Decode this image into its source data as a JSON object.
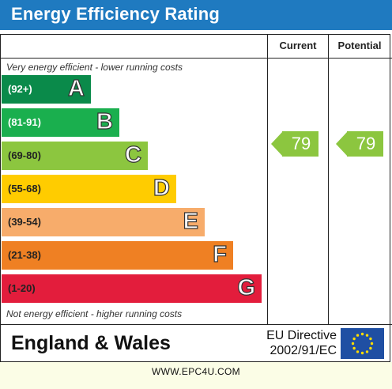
{
  "header": {
    "title": "Energy Efficiency Rating"
  },
  "columns": {
    "current": "Current",
    "potential": "Potential"
  },
  "notes": {
    "top": "Very energy efficient - lower running costs",
    "bottom": "Not energy efficient - higher running costs"
  },
  "chart_data": {
    "type": "bar",
    "title": "Energy Efficiency Rating",
    "bands": [
      {
        "letter": "A",
        "range": "(92+)",
        "color": "#0a8a4a",
        "text_color": "#ffffff"
      },
      {
        "letter": "B",
        "range": "(81-91)",
        "color": "#1aaf4e",
        "text_color": "#ffffff"
      },
      {
        "letter": "C",
        "range": "(69-80)",
        "color": "#8cc63f",
        "text_color": "#222222"
      },
      {
        "letter": "D",
        "range": "(55-68)",
        "color": "#ffcc00",
        "text_color": "#222222"
      },
      {
        "letter": "E",
        "range": "(39-54)",
        "color": "#f7ac6b",
        "text_color": "#222222"
      },
      {
        "letter": "F",
        "range": "(21-38)",
        "color": "#ef8023",
        "text_color": "#222222"
      },
      {
        "letter": "G",
        "range": "(1-20)",
        "color": "#e31d3c",
        "text_color": "#222222"
      }
    ],
    "current": 79,
    "potential": 79,
    "indicator_color": "#8cc63f"
  },
  "region": {
    "country": "England & Wales",
    "directive_line1": "EU Directive",
    "directive_line2": "2002/91/EC"
  },
  "footer": {
    "text": "WWW.EPC4U.COM"
  },
  "colors": {
    "header": "#1f7ac0",
    "eu_flag": "#1f4fa3",
    "eu_stars": "#ffdd00"
  }
}
